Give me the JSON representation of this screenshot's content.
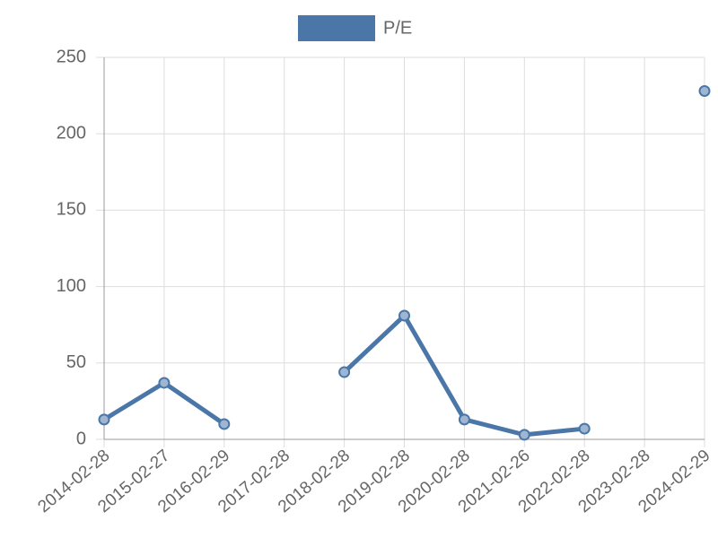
{
  "chart_data": {
    "type": "line",
    "categories": [
      "2014-02-28",
      "2015-02-27",
      "2016-02-29",
      "2017-02-28",
      "2018-02-28",
      "2019-02-28",
      "2020-02-28",
      "2021-02-26",
      "2022-02-28",
      "2023-02-28",
      "2024-02-29"
    ],
    "series": [
      {
        "name": "P/E",
        "color": "#4a77a8",
        "values": [
          13,
          37,
          10,
          null,
          44,
          81,
          13,
          3,
          7,
          null,
          228
        ]
      }
    ],
    "ylim": [
      0,
      250
    ],
    "yticks": [
      0,
      50,
      100,
      150,
      200,
      250
    ],
    "grid": true,
    "legend": "top"
  }
}
